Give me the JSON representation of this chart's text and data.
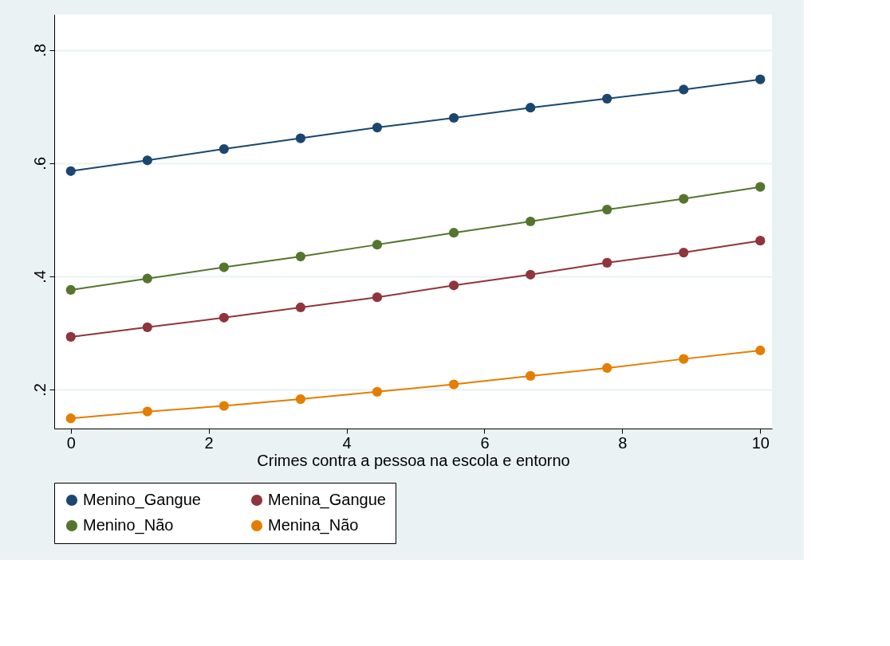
{
  "chart_data": {
    "type": "line",
    "xlabel": "Crimes contra a pessoa na escola e entorno",
    "x": [
      0,
      1.111,
      2.222,
      3.333,
      4.444,
      5.556,
      6.667,
      7.778,
      8.889,
      10
    ],
    "series": [
      {
        "name": "Menino_Gangue",
        "color": "#1a476f",
        "values": [
          0.586,
          0.605,
          0.625,
          0.644,
          0.663,
          0.68,
          0.698,
          0.714,
          0.73,
          0.748
        ]
      },
      {
        "name": "Menina_Gangue",
        "color": "#90353b",
        "values": [
          0.293,
          0.31,
          0.327,
          0.345,
          0.363,
          0.384,
          0.403,
          0.424,
          0.442,
          0.463
        ]
      },
      {
        "name": "Menino_Não",
        "color": "#55752f",
        "values": [
          0.376,
          0.396,
          0.416,
          0.435,
          0.456,
          0.477,
          0.497,
          0.518,
          0.537,
          0.558
        ]
      },
      {
        "name": "Menina_Não",
        "color": "#e37e00",
        "values": [
          0.149,
          0.161,
          0.171,
          0.183,
          0.196,
          0.209,
          0.224,
          0.238,
          0.254,
          0.269
        ]
      }
    ],
    "xlim": [
      -0.24,
      10.17
    ],
    "ylim": [
      0.131,
      0.863
    ],
    "xticks": [
      0,
      2,
      4,
      6,
      8,
      10
    ],
    "yticks": [
      {
        "value": 0.2,
        "label": ".2"
      },
      {
        "value": 0.4,
        "label": ".4"
      },
      {
        "value": 0.6,
        "label": ".6"
      },
      {
        "value": 0.8,
        "label": ".8"
      }
    ],
    "grid": "y",
    "legend": "bottom",
    "marker": "circle",
    "line_style": "solid"
  }
}
